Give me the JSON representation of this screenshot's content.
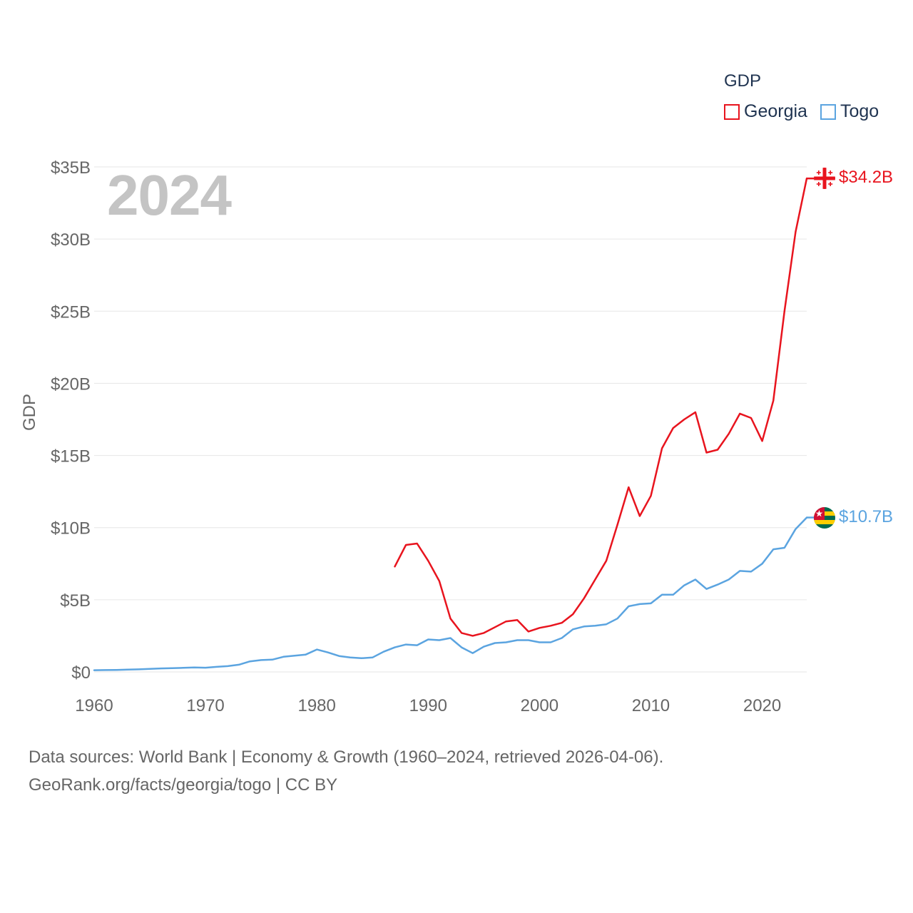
{
  "chart_data": {
    "type": "line",
    "title": "",
    "big_year_label": "2024",
    "xlabel": "",
    "ylabel": "GDP",
    "xlim": [
      1960,
      2024
    ],
    "ylim": [
      0,
      35
    ],
    "x_ticks": [
      1960,
      1970,
      1980,
      1990,
      2000,
      2010,
      2020
    ],
    "x_tick_labels": [
      "1960",
      "1970",
      "1980",
      "1990",
      "2000",
      "2010",
      "2020"
    ],
    "y_ticks": [
      0,
      5,
      10,
      15,
      20,
      25,
      30,
      35
    ],
    "y_tick_labels": [
      "$0",
      "$5B",
      "$10B",
      "$15B",
      "$20B",
      "$25B",
      "$30B",
      "$35B"
    ],
    "grid": true,
    "legend": {
      "title": "GDP",
      "position": "top-right"
    },
    "series": [
      {
        "name": "Georgia",
        "color": "#e8141e",
        "end_label": "$34.2B",
        "flag_icon": "georgia-flag-icon",
        "x": [
          1987,
          1988,
          1989,
          1990,
          1991,
          1992,
          1993,
          1994,
          1995,
          1996,
          1997,
          1998,
          1999,
          2000,
          2001,
          2002,
          2003,
          2004,
          2005,
          2006,
          2007,
          2008,
          2009,
          2010,
          2011,
          2012,
          2013,
          2014,
          2015,
          2016,
          2017,
          2018,
          2019,
          2020,
          2021,
          2022,
          2023,
          2024
        ],
        "values": [
          7.3,
          8.8,
          8.9,
          7.7,
          6.3,
          3.7,
          2.7,
          2.5,
          2.7,
          3.1,
          3.5,
          3.6,
          2.8,
          3.05,
          3.2,
          3.4,
          4.0,
          5.1,
          6.4,
          7.7,
          10.2,
          12.8,
          10.8,
          12.2,
          15.5,
          16.9,
          17.5,
          18.0,
          15.2,
          15.4,
          16.5,
          17.9,
          17.6,
          16.0,
          18.8,
          25.0,
          30.5,
          34.2
        ]
      },
      {
        "name": "Togo",
        "color": "#5ba4e0",
        "end_label": "$10.7B",
        "flag_icon": "togo-flag-icon",
        "x": [
          1960,
          1961,
          1962,
          1963,
          1964,
          1965,
          1966,
          1967,
          1968,
          1969,
          1970,
          1971,
          1972,
          1973,
          1974,
          1975,
          1976,
          1977,
          1978,
          1979,
          1980,
          1981,
          1982,
          1983,
          1984,
          1985,
          1986,
          1987,
          1988,
          1989,
          1990,
          1991,
          1992,
          1993,
          1994,
          1995,
          1996,
          1997,
          1998,
          1999,
          2000,
          2001,
          2002,
          2003,
          2004,
          2005,
          2006,
          2007,
          2008,
          2009,
          2010,
          2011,
          2012,
          2013,
          2014,
          2015,
          2016,
          2017,
          2018,
          2019,
          2020,
          2021,
          2022,
          2023,
          2024
        ],
        "values": [
          0.12,
          0.13,
          0.14,
          0.16,
          0.18,
          0.21,
          0.24,
          0.26,
          0.28,
          0.31,
          0.29,
          0.35,
          0.4,
          0.5,
          0.73,
          0.82,
          0.85,
          1.05,
          1.12,
          1.2,
          1.55,
          1.35,
          1.1,
          1.0,
          0.95,
          1.0,
          1.4,
          1.7,
          1.9,
          1.85,
          2.25,
          2.2,
          2.35,
          1.7,
          1.3,
          1.75,
          2.0,
          2.05,
          2.2,
          2.2,
          2.05,
          2.05,
          2.35,
          2.95,
          3.15,
          3.2,
          3.3,
          3.7,
          4.55,
          4.7,
          4.75,
          5.35,
          5.35,
          6.0,
          6.4,
          5.75,
          6.05,
          6.4,
          7.0,
          6.95,
          7.5,
          8.5,
          8.6,
          9.9,
          10.7
        ]
      }
    ]
  },
  "footer": {
    "line1": "Data sources: World Bank | Economy & Growth (1960–2024, retrieved 2026-04-06).",
    "line2": "GeoRank.org/facts/georgia/togo | CC BY"
  }
}
